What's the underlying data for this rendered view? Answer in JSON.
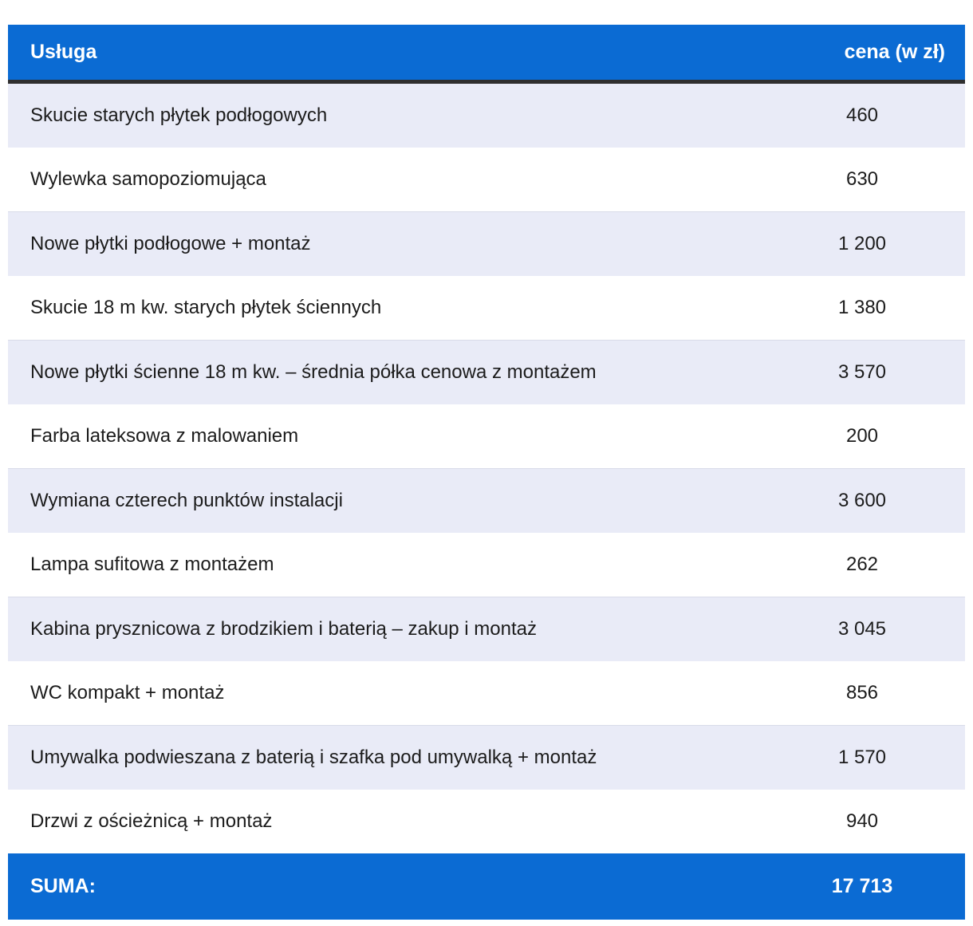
{
  "table": {
    "header": {
      "service_label": "Usługa",
      "price_label": "cena (w zł)"
    },
    "rows": [
      {
        "service": "Skucie starych płytek podłogowych",
        "price": "460"
      },
      {
        "service": "Wylewka samopoziomująca",
        "price": "630"
      },
      {
        "service": "Nowe płytki podłogowe + montaż",
        "price": "1 200"
      },
      {
        "service": "Skucie 18 m kw. starych płytek ściennych",
        "price": "1 380"
      },
      {
        "service": "Nowe płytki ścienne 18 m kw. – średnia półka cenowa z montażem",
        "price": "3 570"
      },
      {
        "service": "Farba lateksowa z malowaniem",
        "price": "200"
      },
      {
        "service": "Wymiana czterech punktów instalacji",
        "price": "3 600"
      },
      {
        "service": "Lampa sufitowa z montażem",
        "price": "262"
      },
      {
        "service": "Kabina prysznicowa z brodzikiem i baterią – zakup i montaż",
        "price": "3 045"
      },
      {
        "service": "WC kompakt + montaż",
        "price": "856"
      },
      {
        "service": "Umywalka podwieszana z baterią i szafka pod umywalką + montaż",
        "price": "1 570"
      },
      {
        "service": "Drzwi z ościeżnicą + montaż",
        "price": "940"
      }
    ],
    "footer": {
      "label": "SUMA:",
      "total": "17 713"
    }
  },
  "colors": {
    "header_background": "#0b6bd3",
    "header_text": "#ffffff",
    "row_alt_background": "#e9ebf7",
    "row_background": "#ffffff",
    "row_text": "#1c1c1c",
    "header_underline": "#2f2f2f"
  },
  "chart_data": {
    "type": "table",
    "title": "",
    "columns": [
      "Usługa",
      "cena (w zł)"
    ],
    "rows": [
      [
        "Skucie starych płytek podłogowych",
        460
      ],
      [
        "Wylewka samopoziomująca",
        630
      ],
      [
        "Nowe płytki podłogowe + montaż",
        1200
      ],
      [
        "Skucie 18 m kw. starych płytek ściennych",
        1380
      ],
      [
        "Nowe płytki ścienne 18 m kw. – średnia półka cenowa z montażem",
        3570
      ],
      [
        "Farba lateksowa z malowaniem",
        200
      ],
      [
        "Wymiana czterech punktów instalacji",
        3600
      ],
      [
        "Lampa sufitowa z montażem",
        262
      ],
      [
        "Kabina prysznicowa z brodzikiem i baterią – zakup i montaż",
        3045
      ],
      [
        "WC kompakt + montaż",
        856
      ],
      [
        "Umywalka podwieszana z baterią i szafka pod umywalką + montaż",
        1570
      ],
      [
        "Drzwi z ościeżnicą + montaż",
        940
      ]
    ],
    "total_row": [
      "SUMA:",
      17713
    ]
  }
}
